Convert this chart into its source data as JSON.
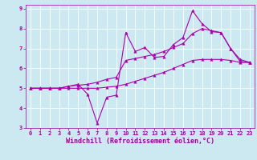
{
  "xlabel": "Windchill (Refroidissement éolien,°C)",
  "background_color": "#cce8f0",
  "grid_color": "#ffffff",
  "line_color": "#aa00aa",
  "xlim": [
    -0.5,
    23.5
  ],
  "ylim": [
    3,
    9.2
  ],
  "yticks": [
    3,
    4,
    5,
    6,
    7,
    8,
    9
  ],
  "xticks": [
    0,
    1,
    2,
    3,
    4,
    5,
    6,
    7,
    8,
    9,
    10,
    11,
    12,
    13,
    14,
    15,
    16,
    17,
    18,
    19,
    20,
    21,
    22,
    23
  ],
  "lines": [
    {
      "x": [
        0,
        1,
        2,
        3,
        4,
        5,
        6,
        7,
        8,
        9,
        10,
        11,
        12,
        13,
        14,
        15,
        16,
        17,
        18,
        19,
        20,
        21,
        22,
        23
      ],
      "y": [
        5.0,
        5.0,
        5.0,
        5.0,
        5.1,
        5.2,
        4.7,
        3.25,
        4.55,
        4.65,
        7.8,
        6.85,
        7.05,
        6.55,
        6.6,
        7.2,
        7.55,
        8.9,
        8.25,
        7.85,
        7.8,
        7.0,
        6.45,
        6.3
      ]
    },
    {
      "x": [
        0,
        1,
        2,
        3,
        4,
        5,
        6,
        7,
        8,
        9,
        10,
        11,
        12,
        13,
        14,
        15,
        16,
        17,
        18,
        19,
        20,
        21,
        22,
        23
      ],
      "y": [
        5.0,
        5.0,
        5.0,
        5.0,
        5.1,
        5.15,
        5.2,
        5.3,
        5.45,
        5.55,
        6.4,
        6.5,
        6.6,
        6.7,
        6.85,
        7.05,
        7.25,
        7.75,
        8.0,
        7.9,
        7.8,
        7.0,
        6.35,
        6.3
      ]
    },
    {
      "x": [
        0,
        1,
        2,
        3,
        4,
        5,
        6,
        7,
        8,
        9,
        10,
        11,
        12,
        13,
        14,
        15,
        16,
        17,
        18,
        19,
        20,
        21,
        22,
        23
      ],
      "y": [
        5.0,
        5.0,
        5.0,
        5.0,
        5.0,
        5.0,
        5.0,
        5.0,
        5.05,
        5.1,
        5.2,
        5.35,
        5.5,
        5.65,
        5.8,
        6.0,
        6.2,
        6.4,
        6.45,
        6.45,
        6.45,
        6.4,
        6.3,
        6.3
      ]
    }
  ],
  "marker": "^",
  "marker_size": 2.5,
  "linewidth": 0.8,
  "tick_fontsize": 5.0,
  "xlabel_fontsize": 6.0,
  "figsize": [
    3.2,
    2.0
  ],
  "dpi": 100
}
